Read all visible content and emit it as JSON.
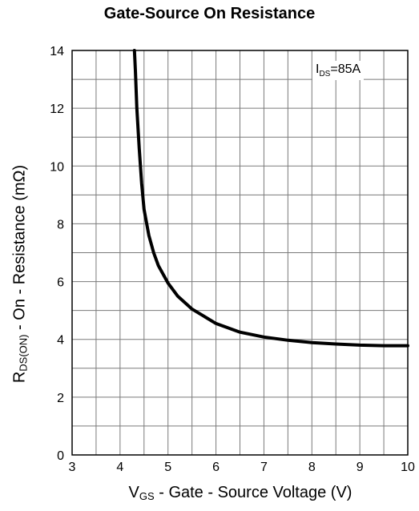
{
  "chart_data": {
    "type": "line",
    "title": "Gate-Source On Resistance",
    "ylabel": {
      "main_prefix": "R",
      "sub": "DS(ON)",
      "suffix": " - On - Resistance (mΩ)"
    },
    "xlabel": {
      "main_prefix": "V",
      "sub": "GS",
      "suffix": " - Gate - Source Voltage (V)"
    },
    "annotation": {
      "prefix": "I",
      "sub": "DS",
      "suffix": "=85A"
    },
    "xlim": [
      3,
      10
    ],
    "ylim": [
      0,
      14
    ],
    "x_ticks": [
      "3",
      "4",
      "5",
      "6",
      "7",
      "8",
      "9",
      "10"
    ],
    "y_ticks": [
      "0",
      "2",
      "4",
      "6",
      "8",
      "10",
      "12",
      "14"
    ],
    "grid": true,
    "series": [
      {
        "x": [
          4.3,
          4.32,
          4.35,
          4.4,
          4.45,
          4.5,
          4.6,
          4.7,
          4.8,
          5.0,
          5.2,
          5.5,
          6.0,
          6.5,
          7.0,
          7.5,
          8.0,
          8.5,
          9.0,
          9.5,
          10.0
        ],
        "y": [
          14.0,
          13.3,
          12.0,
          10.6,
          9.4,
          8.5,
          7.6,
          7.0,
          6.55,
          5.95,
          5.5,
          5.05,
          4.55,
          4.25,
          4.08,
          3.97,
          3.89,
          3.84,
          3.8,
          3.78,
          3.78
        ]
      }
    ],
    "colors": {
      "line": "#000000",
      "grid": "#7a7a7a",
      "axis": "#000000"
    }
  }
}
